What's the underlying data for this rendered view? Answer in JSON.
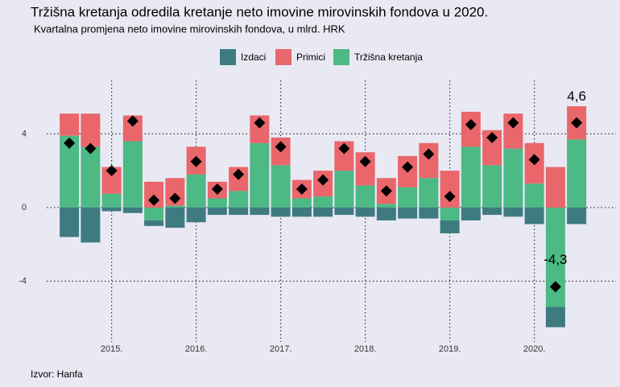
{
  "chart_data": {
    "type": "stacked_bar",
    "title": "Tržišna kretanja odredila kretanje neto imovine mirovinskih fondova u 2020.",
    "subtitle": "Kvartalna promjena neto imovine mirovinskih fondova, u mlrd. HRK",
    "source": "Izvor: Hanfa",
    "categories": [
      null,
      null,
      "2015.",
      null,
      null,
      null,
      "2016.",
      null,
      null,
      null,
      "2017.",
      null,
      null,
      null,
      "2018.",
      null,
      null,
      null,
      "2019.",
      null,
      null,
      null,
      "2020.",
      null,
      null
    ],
    "series": [
      {
        "name": "Izdaci",
        "color": "#3e7b80",
        "values": [
          -1.6,
          -1.9,
          -0.2,
          -0.3,
          -0.3,
          -1.1,
          -0.8,
          -0.4,
          -0.4,
          -0.4,
          -0.5,
          -0.5,
          -0.5,
          -0.4,
          -0.5,
          -0.7,
          -0.6,
          -0.6,
          -0.7,
          -0.7,
          -0.4,
          -0.5,
          -0.9,
          -1.1,
          -0.9
        ]
      },
      {
        "name": "Primici",
        "color": "#e9666b",
        "values": [
          1.2,
          1.8,
          1.45,
          1.4,
          1.4,
          1.5,
          1.5,
          0.9,
          1.3,
          1.5,
          1.5,
          1.0,
          1.4,
          1.6,
          1.8,
          1.4,
          1.7,
          1.9,
          2.0,
          1.9,
          1.9,
          1.9,
          2.2,
          2.2,
          1.8
        ]
      },
      {
        "name": "Tržišna kretanja",
        "color": "#4db985",
        "values": [
          3.9,
          3.3,
          0.75,
          3.6,
          -0.7,
          0.1,
          1.8,
          0.5,
          0.9,
          3.5,
          2.3,
          0.5,
          0.6,
          2.0,
          1.2,
          0.2,
          1.1,
          1.6,
          -0.7,
          3.3,
          2.3,
          3.2,
          1.3,
          -5.4,
          3.7
        ]
      }
    ],
    "markers": {
      "color": "#000000",
      "values": [
        3.5,
        3.2,
        2.0,
        4.7,
        0.4,
        0.5,
        2.5,
        1.0,
        1.8,
        4.6,
        3.3,
        1.0,
        1.5,
        3.2,
        2.5,
        0.9,
        2.2,
        2.9,
        0.6,
        4.5,
        3.8,
        4.6,
        2.6,
        -4.3,
        4.6
      ],
      "value_labels": [
        null,
        null,
        null,
        null,
        null,
        null,
        null,
        null,
        null,
        null,
        null,
        null,
        null,
        null,
        null,
        null,
        null,
        null,
        null,
        null,
        null,
        null,
        null,
        "-4,3",
        "4,6"
      ]
    },
    "ylim": [
      -7.3,
      6.9
    ],
    "yticks": [
      -4,
      0,
      4
    ],
    "grid": true,
    "legend": "top"
  }
}
